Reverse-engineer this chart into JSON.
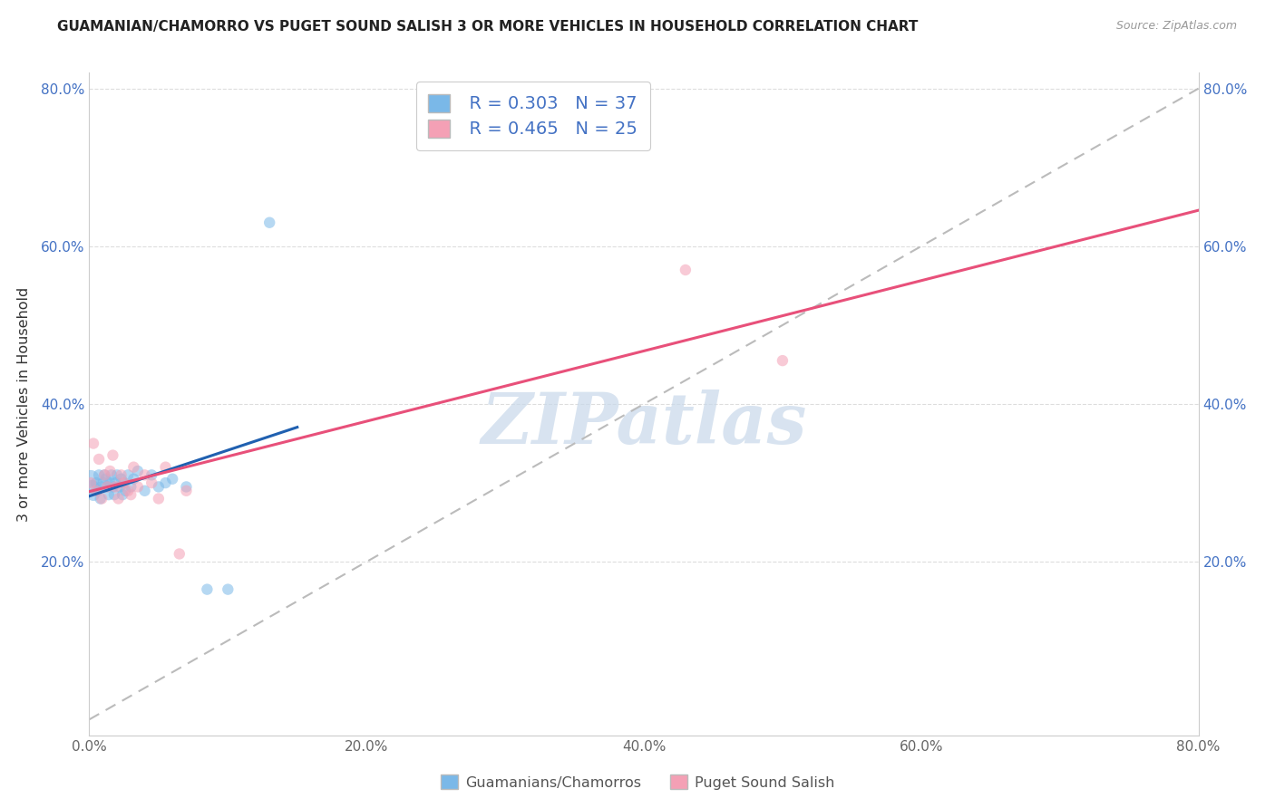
{
  "title": "GUAMANIAN/CHAMORRO VS PUGET SOUND SALISH 3 OR MORE VEHICLES IN HOUSEHOLD CORRELATION CHART",
  "source": "Source: ZipAtlas.com",
  "ylabel": "3 or more Vehicles in Household",
  "xlim": [
    0.0,
    0.8
  ],
  "ylim": [
    -0.02,
    0.82
  ],
  "xtick_labels": [
    "0.0%",
    "20.0%",
    "40.0%",
    "60.0%",
    "80.0%"
  ],
  "xtick_vals": [
    0.0,
    0.2,
    0.4,
    0.6,
    0.8
  ],
  "ytick_labels": [
    "20.0%",
    "40.0%",
    "60.0%",
    "80.0%"
  ],
  "ytick_vals": [
    0.2,
    0.4,
    0.6,
    0.8
  ],
  "right_ytick_labels": [
    "20.0%",
    "40.0%",
    "60.0%",
    "80.0%"
  ],
  "right_ytick_vals": [
    0.2,
    0.4,
    0.6,
    0.8
  ],
  "blue_R": 0.303,
  "blue_N": 37,
  "pink_R": 0.465,
  "pink_N": 25,
  "blue_color": "#7ab8e8",
  "pink_color": "#f4a0b5",
  "blue_line_color": "#2060b0",
  "pink_line_color": "#e8507a",
  "diagonal_color": "#bbbbbb",
  "watermark": "ZIPatlas",
  "watermark_color": "#c8d8ea",
  "legend_label_blue": "Guamanians/Chamorros",
  "legend_label_pink": "Puget Sound Salish",
  "blue_x": [
    0.001,
    0.002,
    0.003,
    0.005,
    0.006,
    0.007,
    0.008,
    0.009,
    0.01,
    0.011,
    0.012,
    0.013,
    0.014,
    0.015,
    0.016,
    0.017,
    0.018,
    0.019,
    0.02,
    0.022,
    0.023,
    0.024,
    0.025,
    0.026,
    0.028,
    0.03,
    0.032,
    0.035,
    0.04,
    0.045,
    0.05,
    0.055,
    0.06,
    0.07,
    0.085,
    0.1,
    0.13
  ],
  "blue_y": [
    0.305,
    0.295,
    0.285,
    0.3,
    0.29,
    0.31,
    0.28,
    0.295,
    0.3,
    0.31,
    0.305,
    0.295,
    0.285,
    0.3,
    0.31,
    0.295,
    0.285,
    0.3,
    0.31,
    0.295,
    0.305,
    0.285,
    0.3,
    0.29,
    0.31,
    0.295,
    0.305,
    0.315,
    0.29,
    0.31,
    0.295,
    0.3,
    0.305,
    0.295,
    0.165,
    0.165,
    0.63
  ],
  "blue_sizes": [
    200,
    120,
    100,
    80,
    80,
    80,
    80,
    80,
    80,
    80,
    80,
    80,
    80,
    80,
    80,
    80,
    80,
    80,
    80,
    80,
    80,
    80,
    80,
    80,
    80,
    80,
    80,
    80,
    80,
    80,
    80,
    80,
    80,
    80,
    80,
    80,
    80
  ],
  "pink_x": [
    0.001,
    0.003,
    0.005,
    0.007,
    0.009,
    0.011,
    0.013,
    0.015,
    0.017,
    0.019,
    0.021,
    0.023,
    0.025,
    0.028,
    0.03,
    0.032,
    0.035,
    0.04,
    0.045,
    0.05,
    0.055,
    0.065,
    0.07,
    0.43,
    0.5
  ],
  "pink_y": [
    0.3,
    0.35,
    0.29,
    0.33,
    0.28,
    0.31,
    0.295,
    0.315,
    0.335,
    0.295,
    0.28,
    0.31,
    0.3,
    0.29,
    0.285,
    0.32,
    0.295,
    0.31,
    0.3,
    0.28,
    0.32,
    0.21,
    0.29,
    0.57,
    0.455
  ],
  "pink_sizes": [
    80,
    80,
    80,
    80,
    80,
    80,
    80,
    80,
    80,
    80,
    80,
    80,
    80,
    80,
    80,
    80,
    80,
    80,
    80,
    80,
    80,
    80,
    80,
    80,
    80
  ],
  "blue_line_x": [
    0.0,
    0.15
  ],
  "pink_line_x": [
    0.0,
    0.8
  ]
}
